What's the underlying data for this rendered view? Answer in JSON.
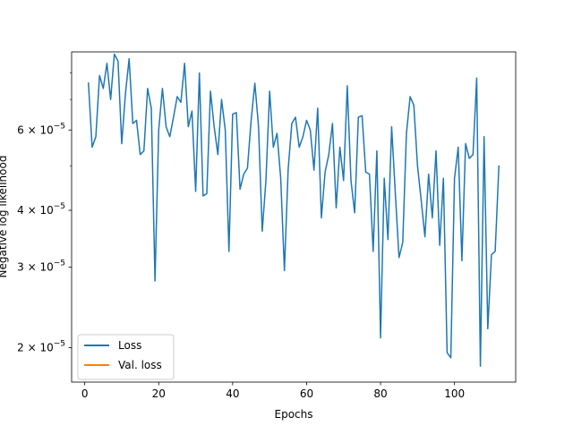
{
  "chart_data": {
    "type": "line",
    "title": "",
    "xlabel": "Epochs",
    "ylabel": "Negative log likelihood",
    "xlim": [
      -3.55,
      116.55
    ],
    "ylim": [
      1.68e-05,
      8.9e-05
    ],
    "yscale": "log",
    "x_ticks": [
      0,
      20,
      40,
      60,
      80,
      100
    ],
    "x_tick_labels": [
      "0",
      "20",
      "40",
      "60",
      "80",
      "100"
    ],
    "y_major_ticks": [
      2e-05,
      3e-05,
      4e-05,
      6e-05
    ],
    "y_major_tick_labels": [
      {
        "mantissa": "2",
        "exponent": "−5"
      },
      {
        "mantissa": "3",
        "exponent": "−5"
      },
      {
        "mantissa": "4",
        "exponent": "−5"
      },
      {
        "mantissa": "6",
        "exponent": "−5"
      }
    ],
    "y_minor_ticks": [
      5e-05,
      7e-05,
      8e-05
    ],
    "grid": false,
    "legend": {
      "placement": "lower left",
      "entries": [
        {
          "label": "Loss",
          "color": "#1f77b4"
        },
        {
          "label": "Val. loss",
          "color": "#ff7f0e"
        }
      ]
    },
    "series": [
      {
        "name": "Loss",
        "color": "#1f77b4",
        "x": [
          1,
          2,
          3,
          4,
          5,
          6,
          7,
          8,
          9,
          10,
          11,
          12,
          13,
          14,
          15,
          16,
          17,
          18,
          19,
          20,
          21,
          22,
          23,
          24,
          25,
          26,
          27,
          28,
          29,
          30,
          31,
          32,
          33,
          34,
          35,
          36,
          37,
          38,
          39,
          40,
          41,
          42,
          43,
          44,
          45,
          46,
          47,
          48,
          49,
          50,
          51,
          52,
          53,
          54,
          55,
          56,
          57,
          58,
          59,
          60,
          61,
          62,
          63,
          64,
          65,
          66,
          67,
          68,
          69,
          70,
          71,
          72,
          73,
          74,
          75,
          76,
          77,
          78,
          79,
          80,
          81,
          82,
          83,
          84,
          85,
          86,
          87,
          88,
          89,
          90,
          91,
          92,
          93,
          94,
          95,
          96,
          97,
          98,
          99,
          100,
          101,
          102,
          103,
          104,
          105,
          106,
          107,
          108,
          109,
          110,
          111,
          112
        ],
        "values": [
          7.6e-05,
          5.5e-05,
          5.8e-05,
          7.9e-05,
          7.4e-05,
          8.4e-05,
          7e-05,
          8.8e-05,
          8.5e-05,
          5.6e-05,
          7.2e-05,
          8.6e-05,
          6.2e-05,
          6.3e-05,
          5.3e-05,
          5.4e-05,
          7.4e-05,
          6.7e-05,
          2.8e-05,
          6e-05,
          7.4e-05,
          6.1e-05,
          5.8e-05,
          6.4e-05,
          7.1e-05,
          6.9e-05,
          8.4e-05,
          6.1e-05,
          6.6e-05,
          4.4e-05,
          8e-05,
          4.3e-05,
          4.35e-05,
          7.3e-05,
          6.1e-05,
          5.3e-05,
          7e-05,
          6e-05,
          3.25e-05,
          6.5e-05,
          6.55e-05,
          4.45e-05,
          4.8e-05,
          4.95e-05,
          6.3e-05,
          7.6e-05,
          6.1e-05,
          3.6e-05,
          4.65e-05,
          7.3e-05,
          5.5e-05,
          5.9e-05,
          4.7e-05,
          2.95e-05,
          4.9e-05,
          6.2e-05,
          6.4e-05,
          5.5e-05,
          5.8e-05,
          6.3e-05,
          6e-05,
          4.9e-05,
          6.7e-05,
          3.85e-05,
          4.85e-05,
          5.3e-05,
          6.2e-05,
          4.05e-05,
          5.5e-05,
          4.65e-05,
          7.5e-05,
          4.65e-05,
          3.95e-05,
          6.4e-05,
          6.45e-05,
          4.85e-05,
          4.8e-05,
          3.25e-05,
          5.4e-05,
          2.1e-05,
          4.7e-05,
          3.45e-05,
          6.1e-05,
          4.35e-05,
          3.15e-05,
          3.4e-05,
          5.9e-05,
          7.1e-05,
          6.8e-05,
          5e-05,
          4.2e-05,
          3.5e-05,
          4.8e-05,
          3.85e-05,
          5.4e-05,
          3.35e-05,
          4.7e-05,
          1.95e-05,
          1.9e-05,
          4.7e-05,
          5.5e-05,
          3.1e-05,
          5.6e-05,
          5.2e-05,
          5.3e-05,
          7.8e-05,
          1.82e-05,
          5.8e-05,
          2.2e-05,
          3.2e-05,
          3.25e-05,
          5e-05
        ]
      },
      {
        "name": "Val. loss",
        "color": "#ff7f0e",
        "x": [],
        "values": []
      }
    ]
  }
}
